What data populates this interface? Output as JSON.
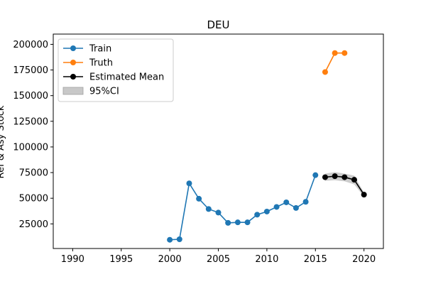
{
  "chart_data": {
    "type": "line",
    "title": "DEU",
    "xlabel": "",
    "ylabel": "Ref & Asy Stock",
    "xlim": [
      1988,
      2022
    ],
    "ylim": [
      1000,
      210000
    ],
    "xticks": [
      1990,
      1995,
      2000,
      2005,
      2010,
      2015,
      2020
    ],
    "yticks": [
      25000,
      50000,
      75000,
      100000,
      125000,
      150000,
      175000,
      200000
    ],
    "legend_position": "top-left",
    "grid": false,
    "series": [
      {
        "name": "Train",
        "color": "#1f77b4",
        "x": [
          2000,
          2001,
          2002,
          2003,
          2004,
          2005,
          2006,
          2007,
          2008,
          2009,
          2010,
          2011,
          2012,
          2013,
          2014,
          2015
        ],
        "y": [
          9500,
          10000,
          64500,
          49500,
          39500,
          36000,
          26000,
          26500,
          26500,
          34000,
          37000,
          41500,
          46000,
          40500,
          46500,
          72500
        ]
      },
      {
        "name": "Truth",
        "color": "#ff7f0e",
        "x": [
          2016,
          2017,
          2018
        ],
        "y": [
          173000,
          191500,
          191500
        ]
      },
      {
        "name": "Estimated Mean",
        "color": "#000000",
        "x": [
          2016,
          2017,
          2018,
          2019,
          2020
        ],
        "y": [
          70500,
          71500,
          70500,
          68000,
          53500
        ]
      }
    ],
    "ci_band": {
      "name": "95%CI",
      "color": "#c8c8c8",
      "x": [
        2016,
        2017,
        2018,
        2019,
        2020
      ],
      "lower": [
        67000,
        67500,
        66500,
        63500,
        51500
      ],
      "upper": [
        74000,
        75500,
        74000,
        72000,
        55500
      ]
    }
  }
}
